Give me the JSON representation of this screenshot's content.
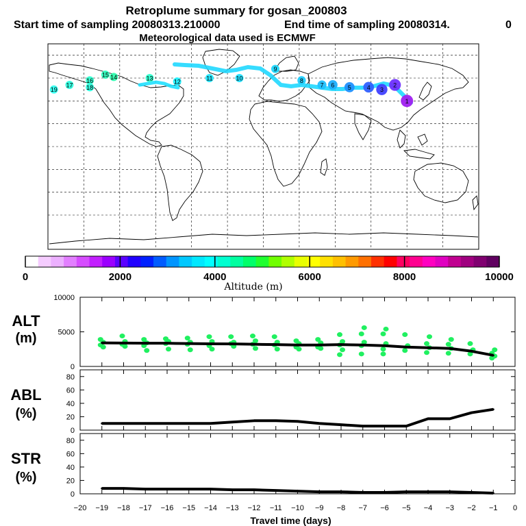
{
  "header": {
    "title": "Retroplume summary for gosan_200803",
    "start_label": "Start time of sampling 20080313.210000",
    "end_label": "End time of sampling 20080314.",
    "end_suffix": "0",
    "met_label": "Meteorological data used is ECMWF"
  },
  "colorbar": {
    "label": "Altitude (m)",
    "ticks": [
      "0",
      "2000",
      "4000",
      "6000",
      "8000",
      "10000"
    ],
    "colors": [
      "#ffffff",
      "#f5ccff",
      "#ecb0ff",
      "#e27fff",
      "#d64dff",
      "#c21fff",
      "#9b00ff",
      "#5a00ff",
      "#2000ff",
      "#0020ff",
      "#005cff",
      "#0095ff",
      "#00c8ff",
      "#00e8ff",
      "#00ffff",
      "#00ffd0",
      "#00ffa0",
      "#00ff6a",
      "#20ff30",
      "#70ff00",
      "#b0ff00",
      "#e8ff00",
      "#ffff00",
      "#ffe000",
      "#ffc000",
      "#ff9a00",
      "#ff7000",
      "#ff3000",
      "#ff0000",
      "#ff0060",
      "#ff0090",
      "#ff00c0",
      "#e000c0",
      "#c00090",
      "#a00080",
      "#800070",
      "#600060"
    ]
  },
  "map": {
    "plume_labels": [
      {
        "lon": 120,
        "lat": 40,
        "text": "1",
        "c": "#a020f0"
      },
      {
        "lon": 110,
        "lat": 54,
        "text": "2",
        "c": "#7030ff"
      },
      {
        "lon": 99,
        "lat": 50,
        "text": "3",
        "c": "#4040ff"
      },
      {
        "lon": 88,
        "lat": 52,
        "text": "4",
        "c": "#3060ff"
      },
      {
        "lon": 72,
        "lat": 52,
        "text": "5",
        "c": "#2090ff"
      },
      {
        "lon": 58,
        "lat": 54,
        "text": "6",
        "c": "#1eb0ff"
      },
      {
        "lon": 49,
        "lat": 54,
        "text": "7",
        "c": "#20c0ff"
      },
      {
        "lon": 32,
        "lat": 58,
        "text": "8",
        "c": "#20d0ff"
      },
      {
        "lon": 10,
        "lat": 68,
        "text": "9",
        "c": "#20d8ff"
      },
      {
        "lon": -20,
        "lat": 60,
        "text": "10",
        "c": "#20e0ff"
      },
      {
        "lon": -45,
        "lat": 60,
        "text": "11",
        "c": "#20e8ff"
      },
      {
        "lon": -72,
        "lat": 57,
        "text": "12",
        "c": "#20f0ff"
      },
      {
        "lon": -95,
        "lat": 60,
        "text": "13",
        "c": "#30ffd0"
      },
      {
        "lon": -125,
        "lat": 61,
        "text": "14",
        "c": "#30ffb0"
      },
      {
        "lon": -132,
        "lat": 63,
        "text": "15",
        "c": "#30ffc0"
      },
      {
        "lon": -145,
        "lat": 58,
        "text": "16",
        "c": "#30ffd0"
      },
      {
        "lon": -162,
        "lat": 54,
        "text": "17",
        "c": "#30ffe0"
      },
      {
        "lon": -145,
        "lat": 52,
        "text": "18",
        "c": "#30ffe0"
      },
      {
        "lon": -175,
        "lat": 50,
        "text": "19",
        "c": "#30fff0"
      }
    ]
  },
  "chart_data": [
    {
      "type": "line",
      "name": "ALT",
      "title": "ALT",
      "unit": "(m)",
      "ylim": [
        0,
        10000
      ],
      "yticks": [
        "10000",
        "5000",
        "0"
      ],
      "x": [
        -19,
        -18,
        -17,
        -16,
        -15,
        -14,
        -13,
        -12,
        -11,
        -10,
        -9,
        -8,
        -7,
        -6,
        -5,
        -4,
        -3,
        -2,
        -1
      ],
      "series": [
        {
          "name": "median",
          "values": [
            3400,
            3380,
            3350,
            3350,
            3300,
            3270,
            3250,
            3200,
            3150,
            3100,
            3100,
            3150,
            3100,
            3000,
            2800,
            2700,
            2600,
            2200,
            1600
          ]
        }
      ],
      "scatter": [
        {
          "x": -19,
          "y": [
            3100,
            3500,
            3900,
            2800
          ]
        },
        {
          "x": -18,
          "y": [
            3200,
            3600,
            4400,
            2900
          ]
        },
        {
          "x": -17,
          "y": [
            3000,
            3400,
            3900,
            2300
          ]
        },
        {
          "x": -16,
          "y": [
            3300,
            3600,
            4000,
            2500
          ]
        },
        {
          "x": -15,
          "y": [
            3200,
            3500,
            4100,
            2400
          ]
        },
        {
          "x": -14,
          "y": [
            3000,
            3600,
            4300,
            2500
          ]
        },
        {
          "x": -13,
          "y": [
            3300,
            3500,
            4300,
            2900
          ]
        },
        {
          "x": -12,
          "y": [
            3200,
            3700,
            4400,
            2600
          ]
        },
        {
          "x": -11,
          "y": [
            3100,
            3500,
            4300,
            2500
          ]
        },
        {
          "x": -10,
          "y": [
            2800,
            3300,
            3700,
            2500
          ]
        },
        {
          "x": -9,
          "y": [
            2800,
            3400,
            3900,
            2600
          ]
        },
        {
          "x": -8,
          "y": [
            3100,
            3600,
            4600,
            2400,
            1700
          ]
        },
        {
          "x": -7,
          "y": [
            3000,
            3500,
            4700,
            5600,
            1800
          ]
        },
        {
          "x": -6,
          "y": [
            2500,
            3300,
            4700,
            5400,
            1800
          ]
        },
        {
          "x": -5,
          "y": [
            2300,
            3000,
            4600
          ]
        },
        {
          "x": -4,
          "y": [
            2000,
            2700,
            3300,
            4300
          ]
        },
        {
          "x": -3,
          "y": [
            1900,
            2600,
            3200,
            3900
          ]
        },
        {
          "x": -2,
          "y": [
            1800,
            2400,
            3300
          ]
        },
        {
          "x": -1,
          "y": [
            1200,
            1500,
            1900,
            2400
          ]
        }
      ]
    },
    {
      "type": "line",
      "name": "ABL",
      "title": "ABL",
      "unit": "(%)",
      "ylim": [
        0,
        90
      ],
      "yticks": [
        "80",
        "60",
        "40",
        "20",
        "0"
      ],
      "x": [
        -19,
        -18,
        -17,
        -16,
        -15,
        -14,
        -13,
        -12,
        -11,
        -10,
        -9,
        -8,
        -7,
        -6,
        -5,
        -4,
        -3,
        -2,
        -1
      ],
      "series": [
        {
          "name": "ABL",
          "values": [
            10,
            10,
            10,
            10,
            10,
            10,
            12,
            14,
            14,
            13,
            10,
            8,
            6,
            6,
            6,
            17,
            17,
            26,
            31
          ]
        }
      ]
    },
    {
      "type": "line",
      "name": "STR",
      "title": "STR",
      "unit": "(%)",
      "ylim": [
        0,
        90
      ],
      "yticks": [
        "80",
        "60",
        "40",
        "20",
        "0"
      ],
      "x": [
        -19,
        -18,
        -17,
        -16,
        -15,
        -14,
        -13,
        -12,
        -11,
        -10,
        -9,
        -8,
        -7,
        -6,
        -5,
        -4,
        -3,
        -2,
        -1
      ],
      "series": [
        {
          "name": "STR",
          "values": [
            8,
            8,
            7,
            7,
            7,
            7,
            6,
            6,
            5,
            4,
            3,
            3,
            2,
            2,
            3,
            3,
            3,
            2,
            1
          ]
        }
      ],
      "xlabel": "Travel time (days)",
      "xticks": [
        "−20",
        "−19",
        "−18",
        "−17",
        "−16",
        "−15",
        "−14",
        "−13",
        "−12",
        "−11",
        "−10",
        "−9",
        "−8",
        "−7",
        "−6",
        "−5",
        "−4",
        "−3",
        "−2",
        "−1",
        "0"
      ]
    }
  ]
}
